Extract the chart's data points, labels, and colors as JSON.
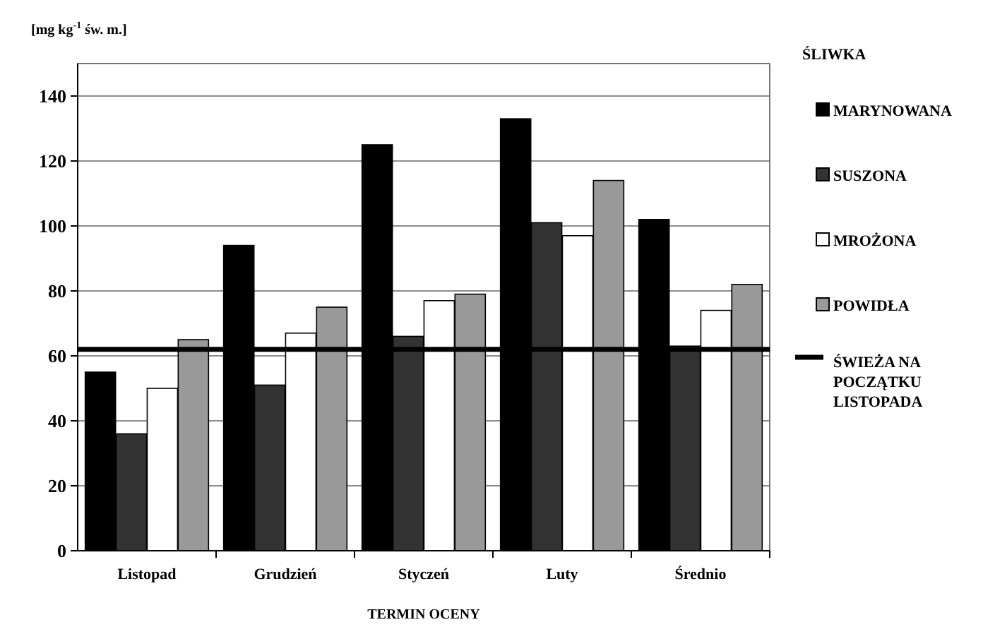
{
  "chart_data": {
    "type": "bar",
    "ylabel": "[mg kg$^{-1}$ św. m.]",
    "xlabel": "TERMIN OCENY",
    "legend_title": "ŚLIWKA",
    "categories": [
      "Listopad",
      "Grudzień",
      "Styczeń",
      "Luty",
      "Średnio"
    ],
    "series": [
      {
        "name": "MARYNOWANA",
        "color": "#000000",
        "values": [
          55,
          94,
          125,
          133,
          102
        ]
      },
      {
        "name": "SUSZONA",
        "color": "#333333",
        "values": [
          36,
          51,
          66,
          101,
          63
        ]
      },
      {
        "name": "MROŻONA",
        "color": "#ffffff",
        "values": [
          50,
          67,
          77,
          97,
          74
        ]
      },
      {
        "name": "POWIDŁA",
        "color": "#999999",
        "values": [
          65,
          75,
          79,
          114,
          82
        ]
      }
    ],
    "ref_lines": [
      {
        "axis": "y",
        "value": 62,
        "label": "ŚWIEŻA NA POCZĄTKU LISTOPADA",
        "color": "#000000"
      }
    ],
    "ylim": [
      0,
      150
    ],
    "yticks": [
      0,
      20,
      40,
      60,
      80,
      100,
      120,
      140
    ],
    "grid": "y",
    "legend": "right"
  }
}
